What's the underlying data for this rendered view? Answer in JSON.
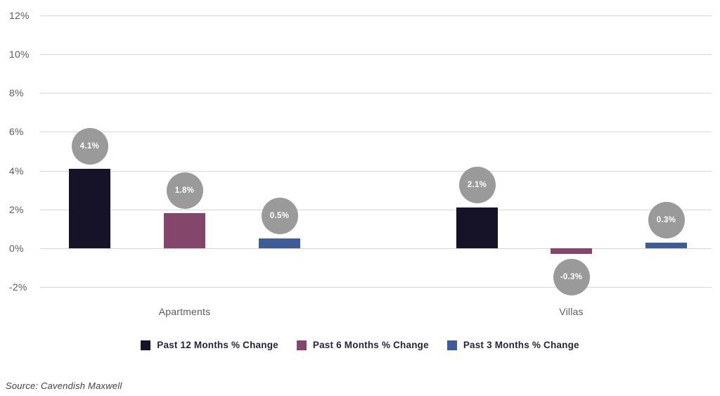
{
  "chart_data": {
    "type": "bar",
    "title": "",
    "categories": [
      "Apartments",
      "Villas"
    ],
    "series": [
      {
        "name": "Past 12 Months % Change",
        "color": "#161329",
        "values": [
          4.1,
          2.1
        ],
        "labels": [
          "4.1%",
          "2.1%"
        ]
      },
      {
        "name": "Past 6 Months % Change",
        "color": "#84466A",
        "values": [
          1.8,
          -0.3
        ],
        "labels": [
          "1.8%",
          "-0.3%"
        ]
      },
      {
        "name": "Past 3 Months % Change",
        "color": "#3D5C99",
        "values": [
          0.5,
          0.3
        ],
        "labels": [
          "0.5%",
          "0.3%"
        ]
      }
    ],
    "y_ticks": [
      {
        "label": "12%",
        "value": 12
      },
      {
        "label": "10%",
        "value": 10
      },
      {
        "label": "8%",
        "value": 8
      },
      {
        "label": "6%",
        "value": 6
      },
      {
        "label": "4%",
        "value": 4
      },
      {
        "label": "2%",
        "value": 2
      },
      {
        "label": "0%",
        "value": 0
      },
      {
        "label": "-2%",
        "value": -2
      }
    ],
    "ylim": [
      -2,
      12
    ],
    "xlabel": "",
    "ylabel": "",
    "grid": true,
    "legend_position": "bottom",
    "data_label_bubble": {
      "fill": "#9A9A9A",
      "text_color": "#FFFFFF"
    },
    "gridline_color": "#D6D6D6",
    "axis_text_color": "#5A5A5A"
  },
  "footer": {
    "source": "Source: Cavendish Maxwell"
  }
}
